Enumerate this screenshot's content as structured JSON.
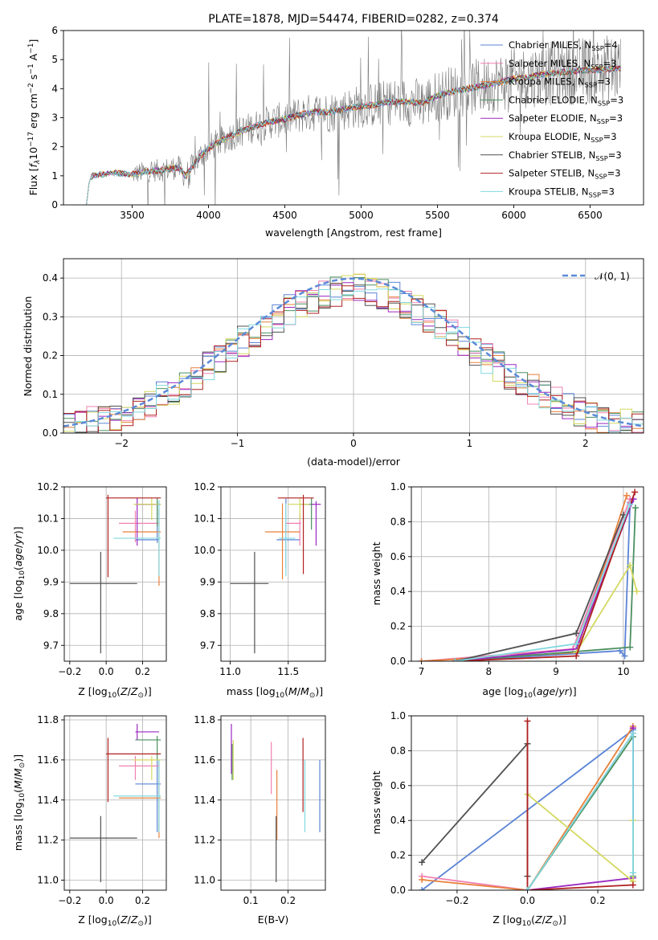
{
  "colors": {
    "Chabrier MILES": "#5b84d6",
    "Salpeter MILES": "#f080b0",
    "Kroupa MILES": "#e8803a",
    "Chabrier ELODIE": "#4a9060",
    "Salpeter ELODIE": "#9a28c0",
    "Kroupa ELODIE": "#d4d860",
    "Chabrier STELIB": "#505050",
    "Salpeter STELIB": "#b02020",
    "Kroupa STELIB": "#80d8e0",
    "data": "#7a7a7a",
    "normal": "#5b8ad8",
    "grid": "#b0b0b0"
  },
  "chart_data": [
    {
      "id": "spectrum",
      "type": "line",
      "title": "PLATE=1878, MJD=54474, FIBERID=0282, z=0.374",
      "xlabel": "wavelength [Angstrom, rest frame]",
      "ylabel": "Flux [f_λ 10^-17 erg cm^-2 s^-1 A^-1]",
      "xlim": [
        3050,
        6850
      ],
      "ylim": [
        0,
        6
      ],
      "xticks": [
        3500,
        4000,
        4500,
        5000,
        5500,
        6000,
        6500
      ],
      "yticks": [
        0,
        1,
        2,
        3,
        4,
        5,
        6
      ],
      "legend_position": "upper right",
      "legend": [
        "Chabrier MILES, N_SSP=4",
        "Salpeter MILES, N_SSP=3",
        "Kroupa MILES, N_SSP=3",
        "Chabrier ELODIE, N_SSP=3",
        "Salpeter ELODIE, N_SSP=3",
        "Kroupa ELODIE, N_SSP=3",
        "Chabrier STELIB, N_SSP=3",
        "Salpeter STELIB, N_SSP=3",
        "Kroupa STELIB, N_SSP=3"
      ],
      "model_wavelength": [
        3200,
        3220,
        3240,
        3300,
        3400,
        3500,
        3600,
        3700,
        3800,
        3850,
        3900,
        3950,
        4000,
        4100,
        4200,
        4300,
        4400,
        4500,
        4600,
        4700,
        4800,
        4900,
        5000,
        5100,
        5200,
        5300,
        5400,
        5500,
        5600,
        5700,
        5800,
        5900,
        6000,
        6100,
        6200,
        6300,
        6400,
        6500,
        6600,
        6700
      ],
      "model_flux": [
        0,
        0.85,
        1.0,
        1.05,
        1.1,
        1.05,
        1.15,
        1.2,
        1.3,
        1.0,
        1.35,
        1.7,
        1.95,
        2.25,
        2.5,
        2.7,
        2.85,
        2.95,
        3.1,
        3.2,
        3.2,
        3.3,
        3.4,
        3.45,
        3.55,
        3.55,
        3.5,
        3.75,
        3.9,
        4.0,
        4.1,
        4.2,
        4.35,
        4.4,
        4.5,
        4.55,
        4.6,
        4.65,
        4.65,
        4.7
      ],
      "data_range": [
        3500,
        6700
      ]
    },
    {
      "id": "residuals",
      "type": "bar",
      "xlabel": "(data-model)/error",
      "ylabel": "Normed distribution",
      "xlim": [
        -2.5,
        2.5
      ],
      "ylim": [
        0,
        0.45
      ],
      "xticks": [
        -2,
        -1,
        0,
        1,
        2
      ],
      "yticks": [
        0.0,
        0.1,
        0.2,
        0.3,
        0.4
      ],
      "legend": [
        "𝒩(0, 1)"
      ],
      "legend_position": "upper right",
      "bins": 50
    },
    {
      "id": "z-age",
      "type": "scatter",
      "xlabel": "Z [log10(Z/Z_sun)]",
      "ylabel": "age [log10(age/yr)]",
      "xlim": [
        -0.23,
        0.33
      ],
      "ylim": [
        9.65,
        10.2
      ],
      "xticks": [
        -0.2,
        0.0,
        0.2
      ],
      "yticks": [
        9.7,
        9.8,
        9.9,
        10.0,
        10.1,
        10.2
      ],
      "points": [
        {
          "model": "Chabrier MILES",
          "x": 0.28,
          "y": 10.033,
          "xerr": [
            0.12,
            0.01
          ],
          "yerr": [
            0.01,
            0.12
          ]
        },
        {
          "model": "Salpeter MILES",
          "x": 0.16,
          "y": 10.085,
          "xerr": [
            0.09,
            0.13
          ],
          "yerr": [
            0.06,
            0.04
          ]
        },
        {
          "model": "Kroupa MILES",
          "x": 0.29,
          "y": 10.058,
          "xerr": [
            0.2,
            0.01
          ],
          "yerr": [
            0.17,
            0.07
          ]
        },
        {
          "model": "Chabrier ELODIE",
          "x": 0.28,
          "y": 10.145,
          "xerr": [
            0.12,
            0.02
          ],
          "yerr": [
            0.07,
            0.02
          ]
        },
        {
          "model": "Salpeter ELODIE",
          "x": 0.17,
          "y": 10.145,
          "xerr": [
            0.01,
            0.12
          ],
          "yerr": [
            0.13,
            0.02
          ]
        },
        {
          "model": "Kroupa ELODIE",
          "x": 0.25,
          "y": 10.145,
          "xerr": [
            0.1,
            0.05
          ],
          "yerr": [
            0.05,
            0.02
          ]
        },
        {
          "model": "Chabrier STELIB",
          "x": -0.03,
          "y": 9.895,
          "xerr": [
            0.17,
            0.2
          ],
          "yerr": [
            0.22,
            0.1
          ]
        },
        {
          "model": "Salpeter STELIB",
          "x": 0.01,
          "y": 10.165,
          "xerr": [
            0.01,
            0.29
          ],
          "yerr": [
            0.25,
            0.01
          ]
        },
        {
          "model": "Kroupa STELIB",
          "x": 0.29,
          "y": 10.038,
          "xerr": [
            0.25,
            0.01
          ],
          "yerr": [
            0.12,
            0.12
          ]
        }
      ]
    },
    {
      "id": "mass-age",
      "type": "scatter",
      "xlabel": "mass [log10(M/M_sun)]",
      "ylabel": "",
      "xlim": [
        10.92,
        11.82
      ],
      "ylim": [
        9.65,
        10.2
      ],
      "xticks": [
        11.0,
        11.5
      ],
      "yticks": [
        9.7,
        9.8,
        9.9,
        10.0,
        10.1,
        10.2
      ],
      "points": [
        {
          "model": "Chabrier MILES",
          "x": 11.48,
          "y": 10.033,
          "xerr": [
            0.08,
            0.12
          ],
          "yerr": [
            0.09,
            0.13
          ]
        },
        {
          "model": "Salpeter MILES",
          "x": 11.6,
          "y": 10.085,
          "xerr": [
            0.12,
            0.01
          ],
          "yerr": [
            0.07,
            0.03
          ]
        },
        {
          "model": "Kroupa MILES",
          "x": 11.45,
          "y": 10.058,
          "xerr": [
            0.15,
            0.15
          ],
          "yerr": [
            0.15,
            0.09
          ]
        },
        {
          "model": "Chabrier ELODIE",
          "x": 11.7,
          "y": 10.145,
          "xerr": [
            0.1,
            0.01
          ],
          "yerr": [
            0.08,
            0.02
          ]
        },
        {
          "model": "Salpeter ELODIE",
          "x": 11.74,
          "y": 10.145,
          "xerr": [
            0.04,
            0.04
          ],
          "yerr": [
            0.13,
            0.01
          ]
        },
        {
          "model": "Kroupa ELODIE",
          "x": 11.6,
          "y": 10.145,
          "xerr": [
            0.1,
            0.08
          ],
          "yerr": [
            0.05,
            0.02
          ]
        },
        {
          "model": "Chabrier STELIB",
          "x": 11.21,
          "y": 9.895,
          "xerr": [
            0.21,
            0.12
          ],
          "yerr": [
            0.22,
            0.1
          ]
        },
        {
          "model": "Salpeter STELIB",
          "x": 11.63,
          "y": 10.165,
          "xerr": [
            0.22,
            0.09
          ],
          "yerr": [
            0.24,
            0.01
          ]
        },
        {
          "model": "Kroupa STELIB",
          "x": 11.48,
          "y": 10.038,
          "xerr": [
            0.06,
            0.08
          ],
          "yerr": [
            0.12,
            0.11
          ]
        }
      ]
    },
    {
      "id": "age-weight",
      "type": "line",
      "xlabel": "age [log10(age/yr)]",
      "ylabel": "mass weight",
      "xlim": [
        6.85,
        10.3
      ],
      "ylim": [
        0,
        1
      ],
      "xticks": [
        7,
        8,
        9,
        10
      ],
      "yticks": [
        0.0,
        0.2,
        0.4,
        0.6,
        0.8,
        1.0
      ],
      "series": [
        {
          "name": "Chabrier MILES",
          "x": [
            7.5,
            9.95,
            10.02,
            10.1
          ],
          "y": [
            0.0,
            0.06,
            0.03,
            0.91
          ]
        },
        {
          "name": "Salpeter MILES",
          "x": [
            7.0,
            9.25,
            10.1
          ],
          "y": [
            0.0,
            0.07,
            0.93
          ]
        },
        {
          "name": "Kroupa MILES",
          "x": [
            7.0,
            9.3,
            10.05
          ],
          "y": [
            0.0,
            0.05,
            0.95
          ]
        },
        {
          "name": "Chabrier ELODIE",
          "x": [
            7.5,
            10.1,
            10.18
          ],
          "y": [
            0.0,
            0.08,
            0.88
          ]
        },
        {
          "name": "Salpeter ELODIE",
          "x": [
            7.5,
            9.3,
            10.15
          ],
          "y": [
            0.0,
            0.07,
            0.93
          ]
        },
        {
          "name": "Kroupa ELODIE",
          "x": [
            9.3,
            10.1,
            10.2
          ],
          "y": [
            0.05,
            0.55,
            0.4
          ]
        },
        {
          "name": "Chabrier STELIB",
          "x": [
            7.5,
            9.3,
            10.0
          ],
          "y": [
            0.0,
            0.16,
            0.84
          ]
        },
        {
          "name": "Salpeter STELIB",
          "x": [
            7.5,
            9.3,
            10.17
          ],
          "y": [
            0.0,
            0.03,
            0.97
          ]
        },
        {
          "name": "Kroupa STELIB",
          "x": [
            7.5,
            9.3,
            10.1
          ],
          "y": [
            0.0,
            0.1,
            0.9
          ]
        }
      ]
    },
    {
      "id": "z-mass",
      "type": "scatter",
      "xlabel": "Z [log10(Z/Z_sun)]",
      "ylabel": "mass [log10(M/M_sun)]",
      "xlim": [
        -0.23,
        0.33
      ],
      "ylim": [
        10.95,
        11.82
      ],
      "xticks": [
        -0.2,
        0.0,
        0.2
      ],
      "yticks": [
        11.0,
        11.2,
        11.4,
        11.6,
        11.8
      ],
      "points": [
        {
          "model": "Chabrier MILES",
          "x": 0.28,
          "y": 11.48,
          "xerr": [
            0.12,
            0.02
          ],
          "yerr": [
            0.24,
            0.12
          ]
        },
        {
          "model": "Salpeter MILES",
          "x": 0.16,
          "y": 11.57,
          "xerr": [
            0.09,
            0.13
          ],
          "yerr": [
            0.07,
            0.05
          ]
        },
        {
          "model": "Kroupa MILES",
          "x": 0.29,
          "y": 11.41,
          "xerr": [
            0.22,
            0.01
          ],
          "yerr": [
            0.2,
            0.19
          ]
        },
        {
          "model": "Chabrier ELODIE",
          "x": 0.28,
          "y": 11.7,
          "xerr": [
            0.12,
            0.02
          ],
          "yerr": [
            0.1,
            0.02
          ]
        },
        {
          "model": "Salpeter ELODIE",
          "x": 0.17,
          "y": 11.74,
          "xerr": [
            0.01,
            0.12
          ],
          "yerr": [
            0.04,
            0.04
          ]
        },
        {
          "model": "Kroupa ELODIE",
          "x": 0.25,
          "y": 11.6,
          "xerr": [
            0.1,
            0.05
          ],
          "yerr": [
            0.1,
            0.02
          ]
        },
        {
          "model": "Chabrier STELIB",
          "x": -0.03,
          "y": 11.21,
          "xerr": [
            0.17,
            0.2
          ],
          "yerr": [
            0.22,
            0.11
          ]
        },
        {
          "model": "Salpeter STELIB",
          "x": 0.01,
          "y": 11.63,
          "xerr": [
            0.01,
            0.29
          ],
          "yerr": [
            0.24,
            0.08
          ]
        },
        {
          "model": "Kroupa STELIB",
          "x": 0.29,
          "y": 11.42,
          "xerr": [
            0.25,
            0.01
          ],
          "yerr": [
            0.18,
            0.18
          ]
        }
      ]
    },
    {
      "id": "ebv-mass",
      "type": "scatter",
      "xlabel": "E(B-V)",
      "ylabel": "",
      "xlim": [
        0.02,
        0.3
      ],
      "ylim": [
        10.95,
        11.82
      ],
      "xticks": [
        0.1,
        0.2
      ],
      "yticks": [
        11.0,
        11.2,
        11.4,
        11.6,
        11.8
      ],
      "points": [
        {
          "model": "Chabrier MILES",
          "x": 0.285,
          "y": 11.42,
          "yerr": [
            0.18,
            0.18
          ]
        },
        {
          "model": "Salpeter MILES",
          "x": 0.155,
          "y": 11.56,
          "yerr": [
            0.13,
            0.13
          ]
        },
        {
          "model": "Kroupa MILES",
          "x": 0.17,
          "y": 11.4,
          "yerr": [
            0.2,
            0.15
          ]
        },
        {
          "model": "Chabrier ELODIE",
          "x": 0.05,
          "y": 11.6,
          "yerr": [
            0.1,
            0.08
          ]
        },
        {
          "model": "Salpeter ELODIE",
          "x": 0.048,
          "y": 11.68,
          "yerr": [
            0.15,
            0.1
          ]
        },
        {
          "model": "Kroupa ELODIE",
          "x": 0.053,
          "y": 11.6,
          "yerr": [
            0.1,
            0.1
          ]
        },
        {
          "model": "Chabrier STELIB",
          "x": 0.168,
          "y": 11.17,
          "yerr": [
            0.18,
            0.15
          ]
        },
        {
          "model": "Salpeter STELIB",
          "x": 0.24,
          "y": 11.52,
          "yerr": [
            0.18,
            0.19
          ]
        },
        {
          "model": "Kroupa STELIB",
          "x": 0.245,
          "y": 11.42,
          "yerr": [
            0.18,
            0.18
          ]
        }
      ]
    },
    {
      "id": "z-weight",
      "type": "line",
      "xlabel": "Z [log10(Z/Z_sun)]",
      "ylabel": "mass weight",
      "xlim": [
        -0.33,
        0.33
      ],
      "ylim": [
        0,
        1
      ],
      "xticks": [
        -0.2,
        0.0,
        0.2
      ],
      "yticks": [
        0.0,
        0.2,
        0.4,
        0.6,
        0.8,
        1.0
      ],
      "series": [
        {
          "name": "Chabrier MILES",
          "x": [
            -0.3,
            0.3,
            0.3
          ],
          "y": [
            0.0,
            0.92,
            0.9
          ]
        },
        {
          "name": "Salpeter MILES",
          "x": [
            -0.3,
            0.0,
            0.3
          ],
          "y": [
            0.08,
            0.0,
            0.9
          ]
        },
        {
          "name": "Kroupa MILES",
          "x": [
            -0.3,
            0.0,
            0.3
          ],
          "y": [
            0.06,
            0.0,
            0.94
          ]
        },
        {
          "name": "Chabrier ELODIE",
          "x": [
            0.0,
            0.3,
            0.3
          ],
          "y": [
            0.0,
            0.88,
            0.08
          ]
        },
        {
          "name": "Salpeter ELODIE",
          "x": [
            0.0,
            0.3,
            0.3
          ],
          "y": [
            0.0,
            0.07,
            0.93
          ]
        },
        {
          "name": "Kroupa ELODIE",
          "x": [
            0.0,
            0.3,
            0.3
          ],
          "y": [
            0.55,
            0.05,
            0.4
          ]
        },
        {
          "name": "Chabrier STELIB",
          "x": [
            -0.3,
            0.0,
            0.0
          ],
          "y": [
            0.16,
            0.84,
            0.08
          ]
        },
        {
          "name": "Salpeter STELIB",
          "x": [
            0.0,
            0.0,
            0.3
          ],
          "y": [
            0.97,
            0.0,
            0.03
          ]
        },
        {
          "name": "Kroupa STELIB",
          "x": [
            0.0,
            0.3,
            0.3
          ],
          "y": [
            0.0,
            0.9,
            0.1
          ]
        }
      ]
    }
  ]
}
